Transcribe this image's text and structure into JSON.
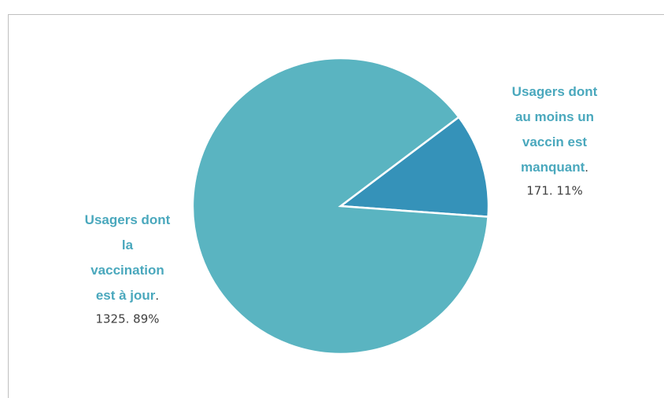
{
  "chart_data": {
    "type": "pie",
    "slices": [
      {
        "name_lines": [
          "Usagers dont",
          "au moins un",
          "vaccin est",
          "manquant"
        ],
        "value": 171,
        "percent": 11,
        "value_label": "171. 11%",
        "color": "#3592b9"
      },
      {
        "name_lines": [
          "Usagers dont",
          "la",
          "vaccination",
          "est à jour"
        ],
        "value": 1325,
        "percent": 89,
        "value_label": "1325. 89%",
        "color": "#5ab4c1"
      }
    ],
    "label_separator": ".",
    "label_color": "#4aa8bd"
  }
}
